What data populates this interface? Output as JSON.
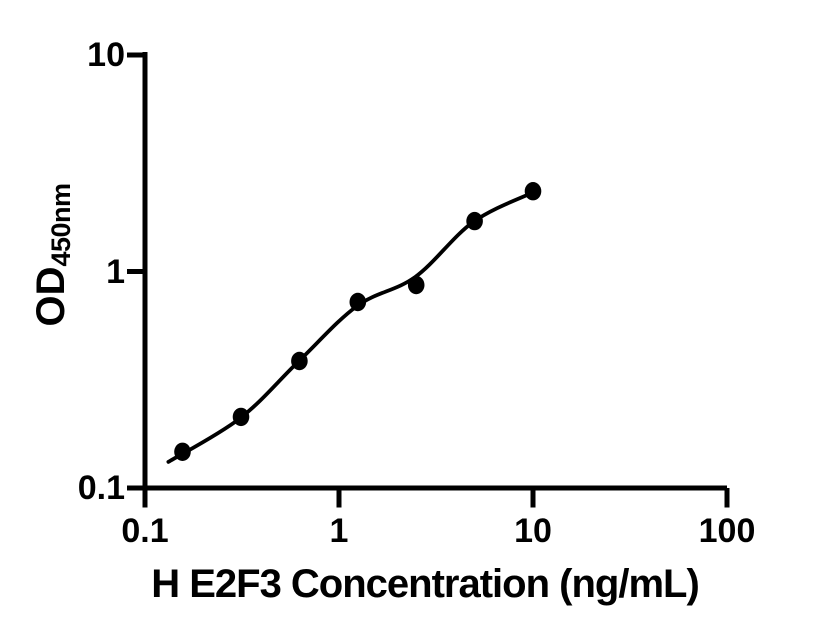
{
  "chart_data": {
    "type": "scatter",
    "xlabel": "H E2F3 Concentration (ng/mL)",
    "ylabel": "OD",
    "ylabel_subscript": "450nm",
    "x_scale": "log",
    "y_scale": "log",
    "xlim": [
      0.1,
      100
    ],
    "ylim": [
      0.1,
      10
    ],
    "grid": false,
    "legend": "none",
    "x_ticks": [
      {
        "value": 0.1,
        "label": "0.1"
      },
      {
        "value": 1,
        "label": "1"
      },
      {
        "value": 10,
        "label": "10"
      },
      {
        "value": 100,
        "label": "100"
      }
    ],
    "y_ticks": [
      {
        "value": 0.1,
        "label": "0.1"
      },
      {
        "value": 1,
        "label": "1"
      },
      {
        "value": 10,
        "label": "10"
      }
    ],
    "series": [
      {
        "marker": "filled-circle",
        "points": [
          {
            "x": 0.156,
            "y": 0.147
          },
          {
            "x": 0.3125,
            "y": 0.213
          },
          {
            "x": 0.625,
            "y": 0.386
          },
          {
            "x": 1.25,
            "y": 0.723
          },
          {
            "x": 2.5,
            "y": 0.866
          },
          {
            "x": 5,
            "y": 1.71
          },
          {
            "x": 10,
            "y": 2.35
          }
        ],
        "fit_curve": [
          {
            "x": 0.132,
            "y": 0.132
          },
          {
            "x": 0.309,
            "y": 0.21
          },
          {
            "x": 0.615,
            "y": 0.382
          },
          {
            "x": 1.24,
            "y": 0.693
          },
          {
            "x": 2.47,
            "y": 0.943
          },
          {
            "x": 4.9,
            "y": 1.69
          },
          {
            "x": 9.88,
            "y": 2.31
          }
        ]
      }
    ],
    "colors": {
      "foreground": "#000000",
      "background": "#ffffff"
    }
  }
}
